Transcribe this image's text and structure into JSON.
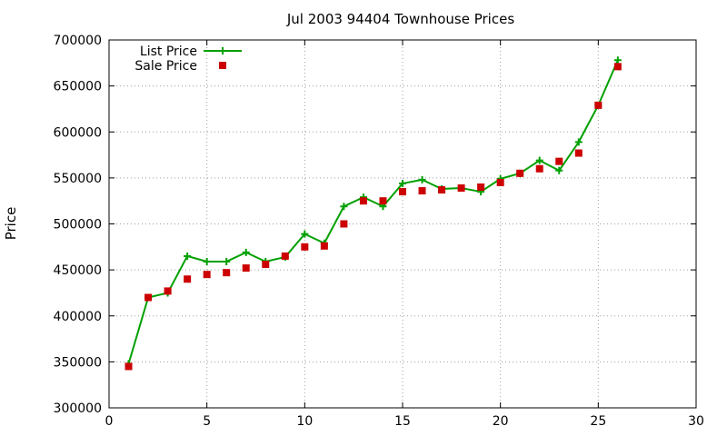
{
  "chart_data": {
    "type": "line",
    "title": "Jul 2003 94404 Townhouse Prices",
    "xlabel": "",
    "ylabel": "Price",
    "xlim": [
      0,
      30
    ],
    "ylim": [
      300000,
      700000
    ],
    "xticks": [
      0,
      5,
      10,
      15,
      20,
      25,
      30
    ],
    "yticks": [
      300000,
      350000,
      400000,
      450000,
      500000,
      550000,
      600000,
      650000,
      700000
    ],
    "grid": true,
    "legend_position": "top-left",
    "series": [
      {
        "name": "List Price",
        "style": "line-with-plus-markers",
        "color": "#00a000",
        "x": [
          1,
          2,
          3,
          4,
          5,
          6,
          7,
          8,
          9,
          10,
          11,
          12,
          13,
          14,
          15,
          16,
          17,
          18,
          19,
          20,
          21,
          22,
          23,
          24,
          25,
          26
        ],
        "y": [
          348000,
          420000,
          425000,
          465000,
          459000,
          459000,
          469000,
          459000,
          464000,
          489000,
          479000,
          519000,
          529000,
          519000,
          544000,
          548000,
          538000,
          539000,
          535000,
          549000,
          555000,
          569000,
          558000,
          589000,
          629000,
          678000
        ]
      },
      {
        "name": "Sale Price",
        "style": "square-markers",
        "color": "#cc0000",
        "x": [
          1,
          2,
          3,
          4,
          5,
          6,
          7,
          8,
          9,
          10,
          11,
          12,
          13,
          14,
          15,
          16,
          17,
          18,
          19,
          20,
          21,
          22,
          23,
          24,
          25,
          26
        ],
        "y": [
          345000,
          420000,
          427000,
          440000,
          445000,
          447000,
          452000,
          456000,
          465000,
          475000,
          476000,
          500000,
          525000,
          525000,
          535000,
          536000,
          537000,
          539000,
          540000,
          545000,
          555000,
          560000,
          568000,
          577000,
          629000,
          671000
        ]
      }
    ]
  }
}
